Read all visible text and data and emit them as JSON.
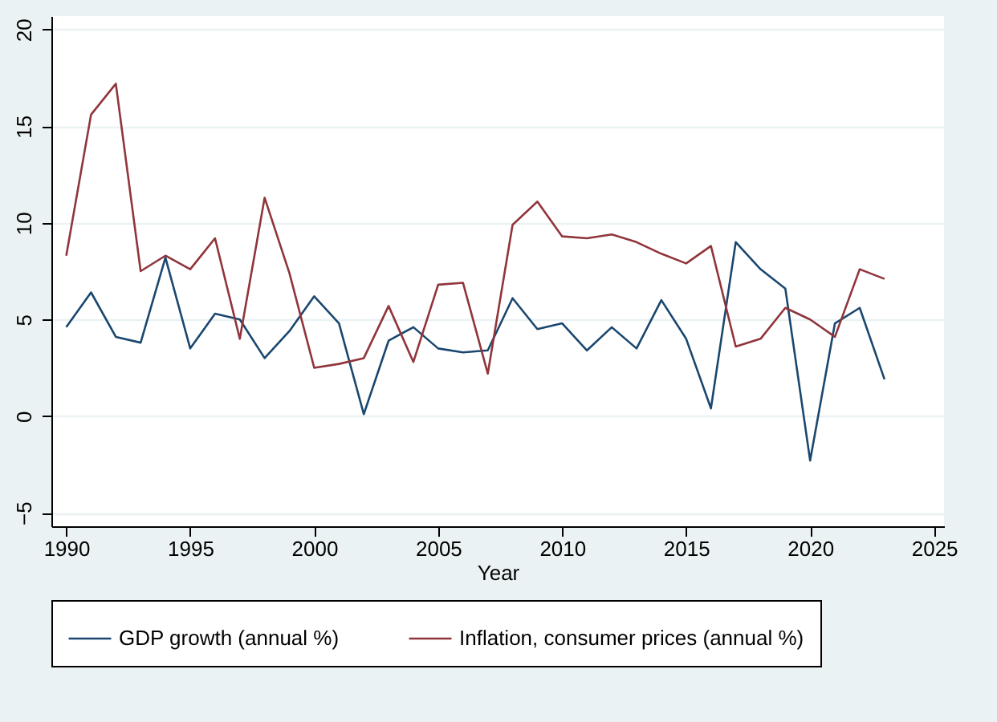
{
  "chart_data": {
    "type": "line",
    "xlabel": "Year",
    "x": [
      1990,
      1991,
      1992,
      1993,
      1994,
      1995,
      1996,
      1997,
      1998,
      1999,
      2000,
      2001,
      2002,
      2003,
      2004,
      2005,
      2006,
      2007,
      2008,
      2009,
      2010,
      2011,
      2012,
      2013,
      2014,
      2015,
      2016,
      2017,
      2018,
      2019,
      2020,
      2021,
      2022,
      2023
    ],
    "series": [
      {
        "name": "GDP growth (annual %)",
        "color": "#1a476f",
        "values": [
          4.6,
          6.4,
          4.1,
          3.8,
          8.2,
          3.5,
          5.3,
          5.0,
          3.0,
          4.4,
          6.2,
          4.8,
          0.1,
          3.9,
          4.6,
          3.5,
          3.3,
          3.4,
          6.1,
          4.5,
          4.8,
          3.4,
          4.6,
          3.5,
          6.0,
          4.0,
          0.4,
          9.0,
          7.6,
          6.6,
          -2.3,
          4.8,
          5.6,
          1.9
        ]
      },
      {
        "name": "Inflation, consumer prices (annual %)",
        "color": "#90353b",
        "values": [
          8.3,
          15.6,
          17.2,
          7.5,
          8.3,
          7.6,
          9.2,
          4.0,
          11.3,
          7.4,
          2.5,
          2.7,
          3.0,
          5.7,
          2.8,
          6.8,
          6.9,
          2.2,
          9.9,
          11.1,
          9.3,
          9.2,
          9.4,
          9.0,
          8.4,
          7.9,
          8.8,
          3.6,
          4.0,
          5.6,
          5.0,
          4.1,
          7.6,
          7.1
        ]
      }
    ],
    "xlim": [
      1989.4,
      2025.4
    ],
    "xticks": [
      1990,
      1995,
      2000,
      2005,
      2010,
      2015,
      2020,
      2025
    ],
    "ylim": [
      -5.7,
      20.7
    ],
    "yticks": [
      -5,
      0,
      5,
      10,
      15,
      20
    ],
    "grid": "y",
    "legend": "bottom"
  }
}
